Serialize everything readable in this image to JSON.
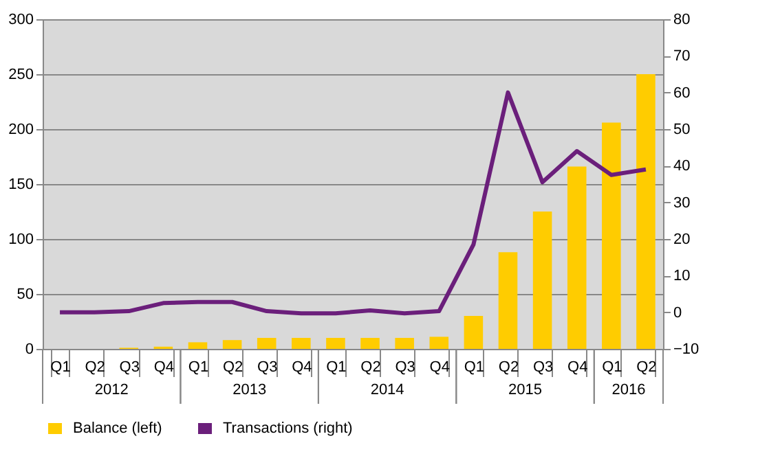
{
  "chart_data": {
    "type": "bar",
    "categories": [
      "Q1",
      "Q2",
      "Q3",
      "Q4",
      "Q1",
      "Q2",
      "Q3",
      "Q4",
      "Q1",
      "Q2",
      "Q3",
      "Q4",
      "Q1",
      "Q2",
      "Q3",
      "Q4",
      "Q1",
      "Q2"
    ],
    "annotations": [
      "2012",
      "2013",
      "2014",
      "2015",
      "2016"
    ],
    "series": [
      {
        "name": "Balance (left)",
        "color": "#ffcc00",
        "values": [
          0,
          0,
          1,
          2,
          6,
          8,
          10,
          10,
          10,
          10,
          10,
          11,
          30,
          88,
          125,
          166,
          206,
          250
        ]
      },
      {
        "name": "Transactions (right)",
        "type": "line",
        "axis": "y2",
        "color": "#6b1f7b",
        "values": [
          0,
          0,
          0.3,
          2.5,
          2.8,
          2.8,
          0.3,
          -0.3,
          -0.3,
          0.5,
          -0.3,
          0.3,
          18.5,
          60,
          35.5,
          44,
          37.5,
          39
        ]
      }
    ],
    "ylim": [
      0,
      300
    ],
    "yticks": [
      0,
      50,
      100,
      150,
      200,
      250,
      300
    ],
    "y2lim": [
      -10,
      80
    ],
    "y2ticks": [
      -10,
      0,
      10,
      20,
      30,
      40,
      50,
      60,
      70,
      80
    ],
    "grid": "y",
    "legend": "bottom",
    "marker": "none",
    "line_style": "solid"
  }
}
